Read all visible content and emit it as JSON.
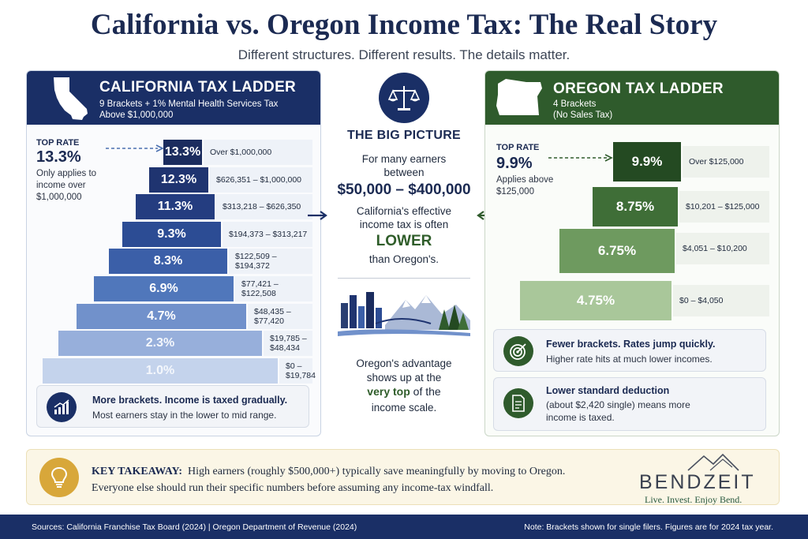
{
  "title": "California vs. Oregon Income Tax: The Real Story",
  "subtitle": "Different structures. Different results. The details matter.",
  "california": {
    "heading": "CALIFORNIA TAX LADDER",
    "sub1": "9 Brackets + 1% Mental Health Services Tax",
    "sub2": "Above $1,000,000",
    "top_rate_label": "TOP RATE",
    "top_rate_value": "13.3%",
    "top_rate_note1": "Only applies to",
    "top_rate_note2": "income over",
    "top_rate_note3": "$1,000,000",
    "brackets": [
      {
        "rate": "13.3%",
        "range": "Over $1,000,000"
      },
      {
        "rate": "12.3%",
        "range": "$626,351 – $1,000,000"
      },
      {
        "rate": "11.3%",
        "range": "$313,218 – $626,350"
      },
      {
        "rate": "9.3%",
        "range": "$194,373 – $313,217"
      },
      {
        "rate": "8.3%",
        "range": "$122,509 – $194,372"
      },
      {
        "rate": "6.9%",
        "range": "$77,421 – $122,508"
      },
      {
        "rate": "4.7%",
        "range": "$48,435 – $77,420"
      },
      {
        "rate": "2.3%",
        "range": "$19,785 – $48,434"
      },
      {
        "rate": "1.0%",
        "range": "$0 – $19,784"
      }
    ],
    "bracket_colors": [
      "#1b2c5e",
      "#1f3470",
      "#243d80",
      "#2c4c94",
      "#3b5fa8",
      "#5077bb",
      "#7191cb",
      "#97afdb",
      "#c4d3ec"
    ],
    "callout_heading": "More brackets. Income is taxed gradually.",
    "callout_text": "Most earners stay in the lower to mid range."
  },
  "middle": {
    "heading": "THE BIG PICTURE",
    "line1": "For many earners",
    "line2": "between",
    "range": "$50,000 – $400,000",
    "line3": "California's effective",
    "line4": "income tax is often",
    "lower": "LOWER",
    "line5": "than Oregon's.",
    "adv1": "Oregon's advantage",
    "adv2": "shows up at the",
    "adv3": "very top",
    "adv4": "of the",
    "adv5": "income scale."
  },
  "oregon": {
    "heading": "OREGON TAX LADDER",
    "sub1": "4 Brackets",
    "sub2": "(No Sales Tax)",
    "top_rate_label": "TOP RATE",
    "top_rate_value": "9.9%",
    "top_rate_note1": "Applies above",
    "top_rate_note2": "$125,000",
    "brackets": [
      {
        "rate": "9.9%",
        "range": "Over $125,000"
      },
      {
        "rate": "8.75%",
        "range": "$10,201 – $125,000"
      },
      {
        "rate": "6.75%",
        "range": "$4,051 – $10,200"
      },
      {
        "rate": "4.75%",
        "range": "$0 – $4,050"
      }
    ],
    "bracket_colors": [
      "#244a22",
      "#3f6e37",
      "#6e9a5f",
      "#a9c79a"
    ],
    "callout1_heading": "Fewer brackets. Rates jump quickly.",
    "callout1_text": "Higher rate hits at much lower incomes.",
    "callout2_heading": "Lower standard deduction",
    "callout2_text1": "(about $2,420 single) means more",
    "callout2_text2": "income is taxed."
  },
  "takeaway": {
    "label": "KEY TAKEAWAY:",
    "line1": "High earners (roughly $500,000+) typically save meaningfully by moving to Oregon.",
    "line2": "Everyone else should run their specific numbers before assuming any income-tax windfall."
  },
  "logo": {
    "word": "BENDZEIT",
    "tagline": "Live. Invest. Enjoy Bend."
  },
  "footer": {
    "sources": "Sources: California Franchise Tax Board (2024)  |  Oregon Department of Revenue (2024)",
    "note": "Note: Brackets shown for single filers. Figures are for 2024 tax year."
  }
}
